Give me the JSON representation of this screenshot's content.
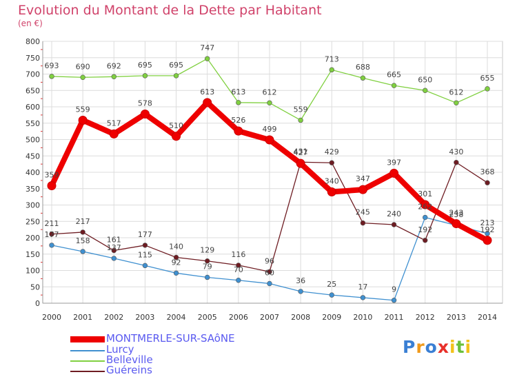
{
  "chart_data": {
    "type": "line",
    "title": "Evolution du Montant de la Dette par Habitant",
    "subtitle": "(en €)",
    "x": [
      "2000",
      "2001",
      "2002",
      "2003",
      "2004",
      "2005",
      "2006",
      "2007",
      "2008",
      "2009",
      "2010",
      "2011",
      "2012",
      "2013",
      "2014"
    ],
    "ylim": [
      0,
      800
    ],
    "yticks": [
      "0",
      "50",
      "100",
      "150",
      "200",
      "250",
      "300",
      "350",
      "400",
      "450",
      "500",
      "550",
      "600",
      "650",
      "700",
      "750",
      "800"
    ],
    "grid": true,
    "legend_position": "bottom-left",
    "series": [
      {
        "name": "MONTMERLE-SUR-SAôNE",
        "color": "#ee0000",
        "values": [
          359,
          559,
          517,
          578,
          510,
          613,
          526,
          499,
          427,
          340,
          347,
          397,
          301,
          243,
          192
        ]
      },
      {
        "name": "Lurcy",
        "color": "#3f90d0",
        "values": [
          177,
          158,
          137,
          115,
          92,
          79,
          70,
          60,
          36,
          25,
          17,
          9,
          262,
          238,
          213
        ]
      },
      {
        "name": "Belleville",
        "color": "#80d040",
        "values": [
          693,
          690,
          692,
          695,
          695,
          747,
          613,
          612,
          559,
          713,
          688,
          665,
          650,
          612,
          655
        ]
      },
      {
        "name": "Guéreins",
        "color": "#6e1c22",
        "values": [
          211,
          217,
          161,
          177,
          140,
          129,
          116,
          96,
          431,
          429,
          245,
          240,
          192,
          430,
          368
        ]
      }
    ]
  },
  "logo": {
    "letters": [
      "P",
      "r",
      "o",
      "x",
      "i",
      "t",
      "i"
    ],
    "colors": [
      "#3a7fd4",
      "#f09a1c",
      "#3a7fd4",
      "#e8302a",
      "#f2c21b",
      "#6abf3c",
      "#f2c21b"
    ]
  }
}
